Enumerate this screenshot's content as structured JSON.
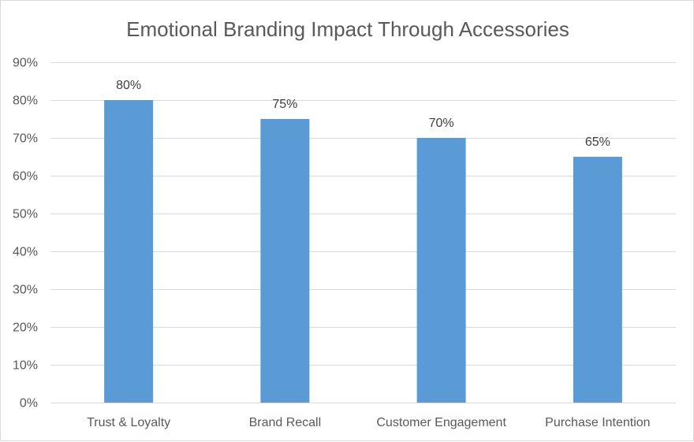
{
  "chart_data": {
    "type": "bar",
    "title": "Emotional Branding Impact Through Accessories",
    "xlabel": "",
    "ylabel": "",
    "categories": [
      "Trust & Loyalty",
      "Brand Recall",
      "Customer Engagement",
      "Purchase Intention"
    ],
    "values": [
      80,
      75,
      70,
      65
    ],
    "data_labels": [
      "80%",
      "75%",
      "70%",
      "65%"
    ],
    "ylim": [
      0,
      90
    ],
    "yticks": [
      0,
      10,
      20,
      30,
      40,
      50,
      60,
      70,
      80,
      90
    ],
    "ytick_labels": [
      "0%",
      "10%",
      "20%",
      "30%",
      "40%",
      "50%",
      "60%",
      "70%",
      "80%",
      "90%"
    ],
    "grid": true,
    "legend": "none",
    "bar_color": "#5b9bd5"
  }
}
